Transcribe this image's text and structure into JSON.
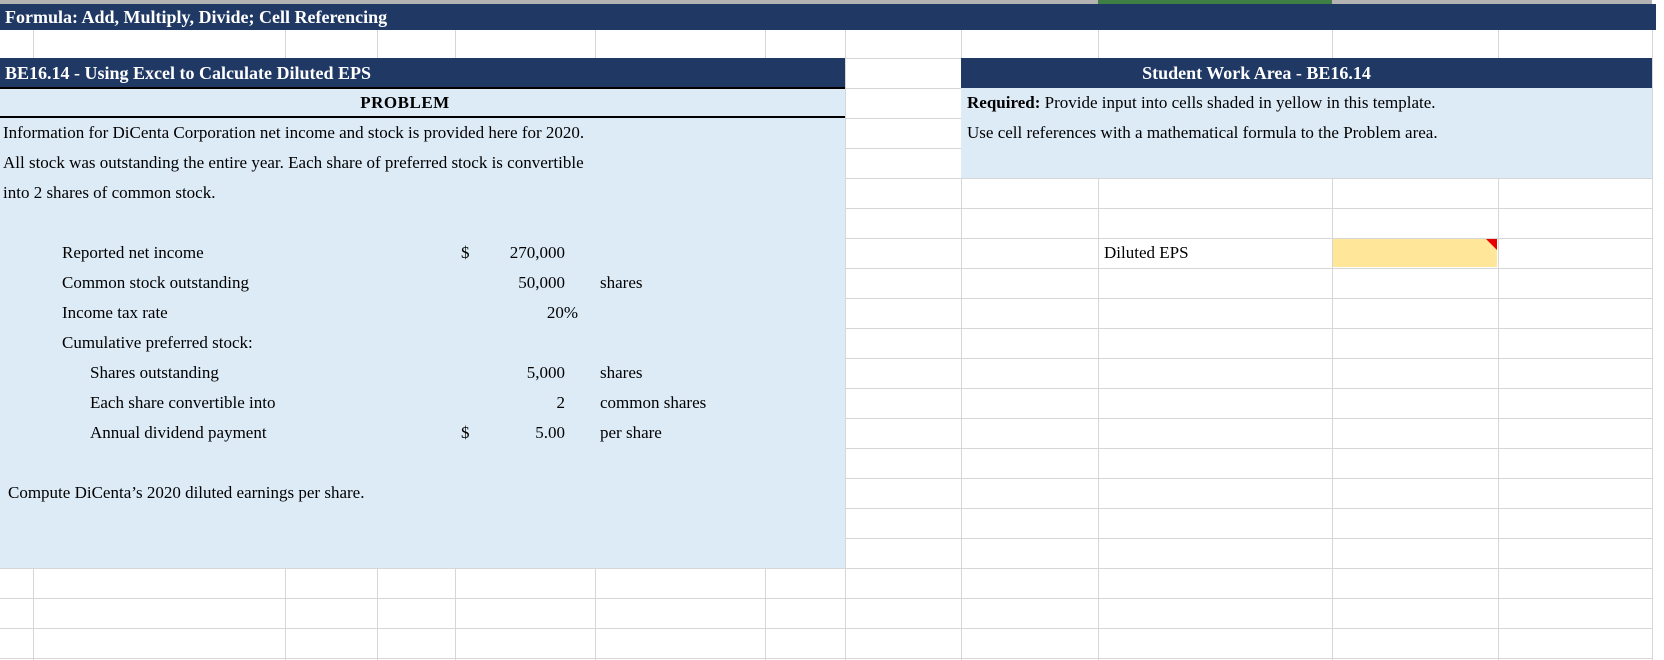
{
  "banner": {
    "title": "Formula: Add, Multiply, Divide; Cell Referencing"
  },
  "problem_section": {
    "header": "BE16.14 - Using Excel to Calculate Diluted EPS",
    "subheader": "PROBLEM",
    "description_lines": [
      "Information for DiCenta Corporation net income and stock is provided here for 2020.",
      "All stock was outstanding the entire year. Each share of preferred stock is convertible",
      "into 2 shares of common stock."
    ],
    "items": [
      {
        "label": "Reported net income",
        "currency": "$",
        "value": "270,000",
        "unit": ""
      },
      {
        "label": "Common stock outstanding",
        "currency": "",
        "value": "50,000",
        "unit": "shares"
      },
      {
        "label": "Income tax rate",
        "currency": "",
        "value": "20%",
        "unit": ""
      },
      {
        "label": "Cumulative preferred stock:",
        "currency": "",
        "value": "",
        "unit": ""
      },
      {
        "label": "Shares outstanding",
        "currency": "",
        "value": "5,000",
        "unit": "shares"
      },
      {
        "label": "Each share convertible into",
        "currency": "",
        "value": "2",
        "unit": "common shares"
      },
      {
        "label": "Annual dividend payment",
        "currency": "$",
        "value": "5.00",
        "unit": "per share"
      }
    ],
    "task": "Compute DiCenta’s 2020 diluted earnings per share."
  },
  "work_area": {
    "header": "Student Work Area - BE16.14",
    "required_bold": "Required:",
    "required_rest": " Provide input into cells shaded in yellow in this template.",
    "required_line2": "Use cell references with a mathematical formula to the Problem area.",
    "output_label": "Diluted EPS",
    "input_value": ""
  },
  "colors": {
    "header_navy": "#1f3864",
    "area_blue": "#ddebf7",
    "input_yellow": "#ffe699",
    "comment_red": "#e60000",
    "green_strip": "#3f7e44",
    "gridline_grey": "#d6d6d6",
    "top_strip_grey": "#b3b3b3"
  }
}
